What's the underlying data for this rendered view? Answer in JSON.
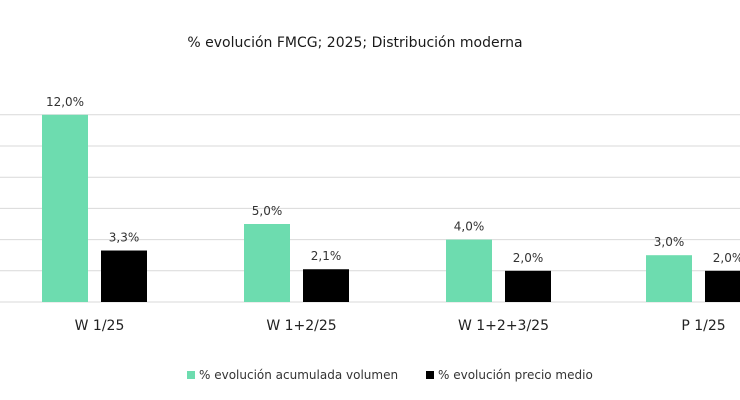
{
  "chart_data": {
    "type": "bar",
    "title": "% evolución FMCG; 2025; Distribución moderna",
    "xlabel": "",
    "ylabel": "",
    "categories": [
      "W 1/25",
      "W 1+2/25",
      "W 1+2+3/25",
      "P 1/25"
    ],
    "series": [
      {
        "name": "% evolución acumulada volumen",
        "color": "#6ddcaf",
        "values": [
          12.0,
          5.0,
          4.0,
          3.0
        ],
        "labels": [
          "12,0%",
          "5,0%",
          "4,0%",
          "3,0%"
        ]
      },
      {
        "name": "% evolución precio medio",
        "color": "#000000",
        "values": [
          3.3,
          2.1,
          2.0,
          2.0
        ],
        "labels": [
          "3,3%",
          "2,1%",
          "2,0%",
          "2,0%"
        ]
      }
    ],
    "ylim": [
      0,
      14
    ],
    "grid": true,
    "legend_position": "bottom"
  }
}
